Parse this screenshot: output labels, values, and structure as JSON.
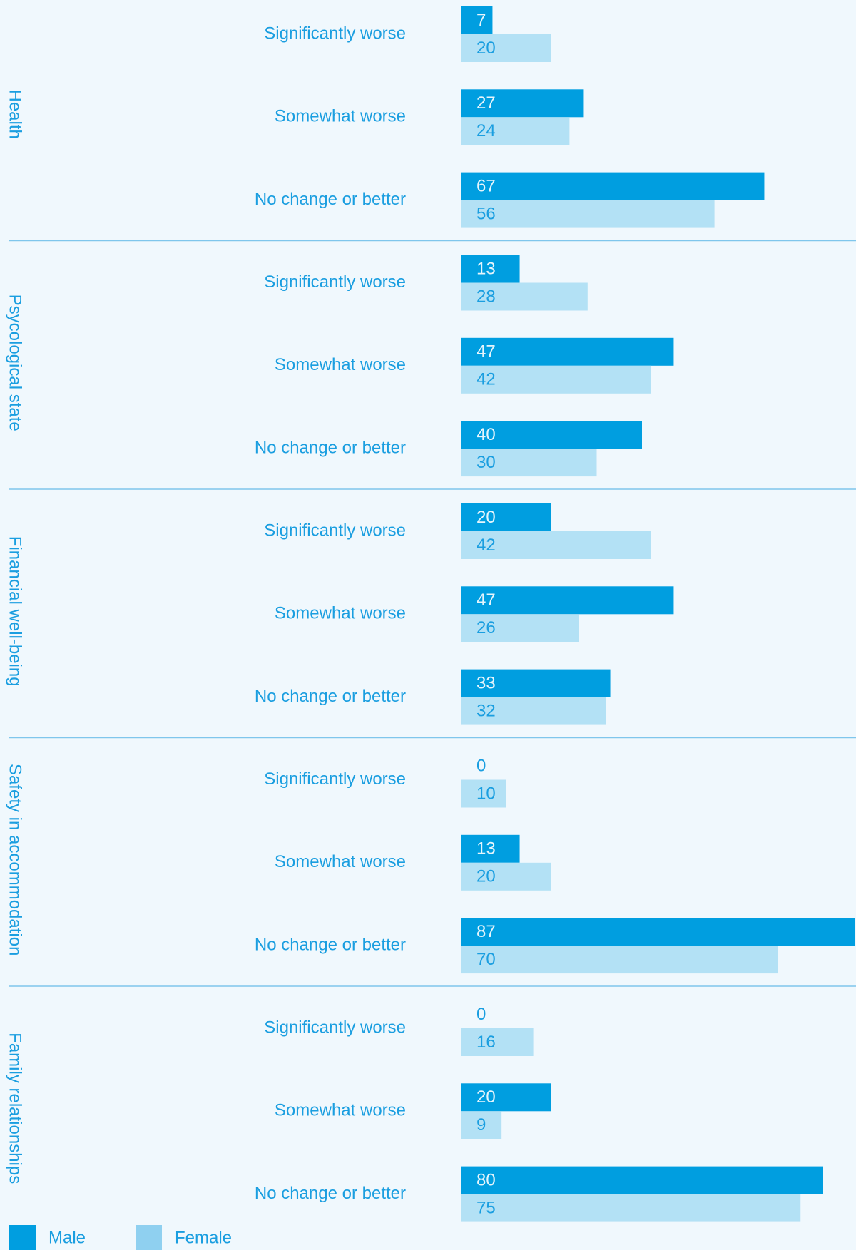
{
  "chart_data": {
    "type": "bar",
    "series": [
      {
        "name": "Male",
        "color": "#009ee0"
      },
      {
        "name": "Female",
        "color": "#b3e1f5"
      }
    ],
    "groups": [
      {
        "name": "Health",
        "categories": [
          "Significantly worse",
          "Somewhat worse",
          "No change or better"
        ],
        "values": [
          [
            7,
            27,
            67
          ],
          [
            20,
            24,
            56
          ]
        ]
      },
      {
        "name": "Psycological state",
        "categories": [
          "Significantly worse",
          "Somewhat worse",
          "No change or better"
        ],
        "values": [
          [
            13,
            47,
            40
          ],
          [
            28,
            42,
            30
          ]
        ]
      },
      {
        "name": "Financial well-being",
        "categories": [
          "Significantly worse",
          "Somewhat worse",
          "No change or better"
        ],
        "values": [
          [
            20,
            47,
            33
          ],
          [
            42,
            26,
            32
          ]
        ]
      },
      {
        "name": "Safety in accommodation",
        "categories": [
          "Significantly worse",
          "Somewhat worse",
          "No change or better"
        ],
        "values": [
          [
            0,
            13,
            87
          ],
          [
            10,
            20,
            70
          ]
        ]
      },
      {
        "name": "Family relationships",
        "categories": [
          "Significantly worse",
          "Somewhat worse",
          "No change or better"
        ],
        "values": [
          [
            0,
            20,
            80
          ],
          [
            16,
            9,
            75
          ]
        ]
      }
    ]
  }
}
